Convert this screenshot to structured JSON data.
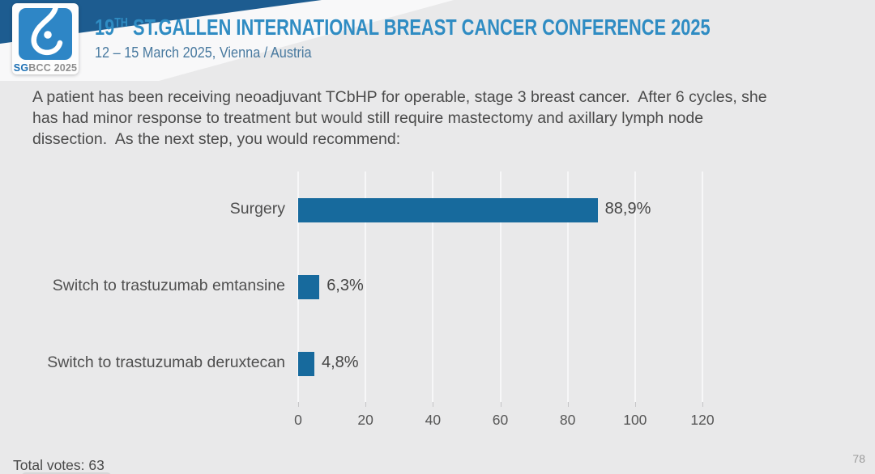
{
  "header": {
    "logo": {
      "sg": "SG",
      "rest": "BCC 2025"
    },
    "title_num": "19",
    "title_sup": "TH",
    "title_rest": " ST.GALLEN INTERNATIONAL BREAST CANCER CONFERENCE 2025",
    "subtitle": "12 – 15 March 2025, Vienna / Austria",
    "accent_color": "#2f8cc3",
    "band_color": "#1d5c90"
  },
  "question": "A patient has been receiving neoadjuvant TCbHP for operable, stage 3 breast cancer.  After 6 cycles, she has had minor response to treatment but would still require mastectomy and axillary lymph node dissection.  As the next step, you would recommend:",
  "chart_data": {
    "type": "bar",
    "orientation": "horizontal",
    "title": "",
    "categories": [
      "Surgery",
      "Switch to trastuzumab emtansine",
      "Switch to trastuzumab deruxtecan"
    ],
    "values": [
      88.9,
      6.3,
      4.8
    ],
    "value_labels": [
      "88,9%",
      "6,3%",
      "4,8%"
    ],
    "xlim": [
      0,
      120
    ],
    "xticks": [
      0,
      20,
      40,
      60,
      80,
      100,
      120
    ],
    "grid": true,
    "legend": false,
    "bar_color": "#176a9d"
  },
  "footer": {
    "total_votes": "Total votes: 63",
    "page_number": "78"
  }
}
